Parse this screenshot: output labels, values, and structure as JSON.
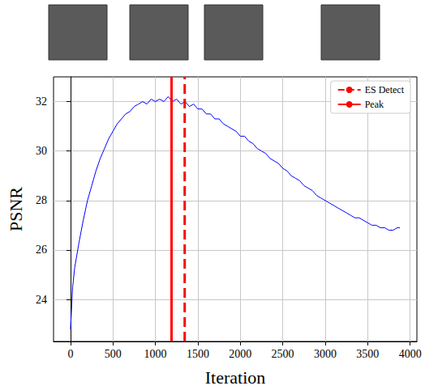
{
  "chart_data": {
    "type": "line",
    "x_label": "Iteration",
    "y_label": "PSNR",
    "x": [
      0,
      25,
      50,
      100,
      150,
      200,
      250,
      300,
      350,
      400,
      450,
      500,
      550,
      600,
      650,
      700,
      750,
      800,
      850,
      900,
      950,
      1000,
      1050,
      1100,
      1150,
      1200,
      1250,
      1300,
      1350,
      1400,
      1450,
      1500,
      1550,
      1600,
      1650,
      1700,
      1750,
      1800,
      1850,
      1900,
      1950,
      2000,
      2050,
      2100,
      2150,
      2200,
      2250,
      2300,
      2350,
      2400,
      2450,
      2500,
      2550,
      2600,
      2650,
      2700,
      2750,
      2800,
      2850,
      2900,
      2950,
      3000,
      3050,
      3100,
      3150,
      3200,
      3250,
      3300,
      3350,
      3400,
      3450,
      3500,
      3550,
      3600,
      3650,
      3700,
      3750,
      3800,
      3850,
      3880
    ],
    "values": [
      22.8,
      24.5,
      25.3,
      26.3,
      27.2,
      28.0,
      28.6,
      29.2,
      29.7,
      30.1,
      30.5,
      30.8,
      31.1,
      31.3,
      31.5,
      31.6,
      31.8,
      31.9,
      32.0,
      31.9,
      32.1,
      32.0,
      32.1,
      32.0,
      32.2,
      32.0,
      32.1,
      31.9,
      32.0,
      31.8,
      31.9,
      31.7,
      31.7,
      31.5,
      31.5,
      31.3,
      31.3,
      31.1,
      31.0,
      30.9,
      30.8,
      30.6,
      30.6,
      30.4,
      30.3,
      30.1,
      30.0,
      29.9,
      29.7,
      29.6,
      29.5,
      29.3,
      29.2,
      29.0,
      28.9,
      28.8,
      28.6,
      28.5,
      28.4,
      28.2,
      28.1,
      28.0,
      27.9,
      27.8,
      27.7,
      27.6,
      27.5,
      27.4,
      27.3,
      27.3,
      27.2,
      27.1,
      27.0,
      27.0,
      26.9,
      26.9,
      26.8,
      26.8,
      26.9,
      26.9
    ],
    "color": "#0000ff",
    "vlines": [
      {
        "name": "ES Detect",
        "x": 1345,
        "color": "#ff0000",
        "line_style": "dashed"
      },
      {
        "name": "Peak",
        "x": 1190,
        "color": "#ff0000",
        "line_style": "solid"
      }
    ],
    "xlim": [
      -200,
      4080
    ],
    "xticks": [
      0,
      500,
      1000,
      1500,
      2000,
      2500,
      3000,
      3500,
      4000
    ],
    "ylim": [
      22.3,
      33.0
    ],
    "yticks": [
      24,
      26,
      28,
      30,
      32
    ],
    "grid": true,
    "legend": "upper right"
  }
}
